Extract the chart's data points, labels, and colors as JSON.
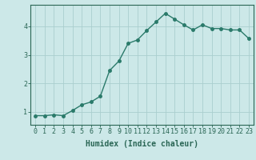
{
  "x": [
    0,
    1,
    2,
    3,
    4,
    5,
    6,
    7,
    8,
    9,
    10,
    11,
    12,
    13,
    14,
    15,
    16,
    17,
    18,
    19,
    20,
    21,
    22,
    23
  ],
  "y": [
    0.87,
    0.87,
    0.9,
    0.87,
    1.05,
    1.25,
    1.35,
    1.55,
    2.45,
    2.78,
    3.4,
    3.52,
    3.85,
    4.15,
    4.45,
    4.25,
    4.05,
    3.87,
    4.05,
    3.92,
    3.92,
    3.87,
    3.87,
    3.57
  ],
  "line_color": "#2a7a6a",
  "marker": "o",
  "marker_size": 2.5,
  "bg_color": "#cce8e8",
  "grid_color": "#aacece",
  "axis_color": "#2a6655",
  "xlabel": "Humidex (Indice chaleur)",
  "xlabel_fontsize": 7,
  "yticks": [
    1,
    2,
    3,
    4
  ],
  "xticks": [
    0,
    1,
    2,
    3,
    4,
    5,
    6,
    7,
    8,
    9,
    10,
    11,
    12,
    13,
    14,
    15,
    16,
    17,
    18,
    19,
    20,
    21,
    22,
    23
  ],
  "ylim": [
    0.55,
    4.75
  ],
  "xlim": [
    -0.5,
    23.5
  ],
  "tick_fontsize": 6,
  "linewidth": 1.0
}
